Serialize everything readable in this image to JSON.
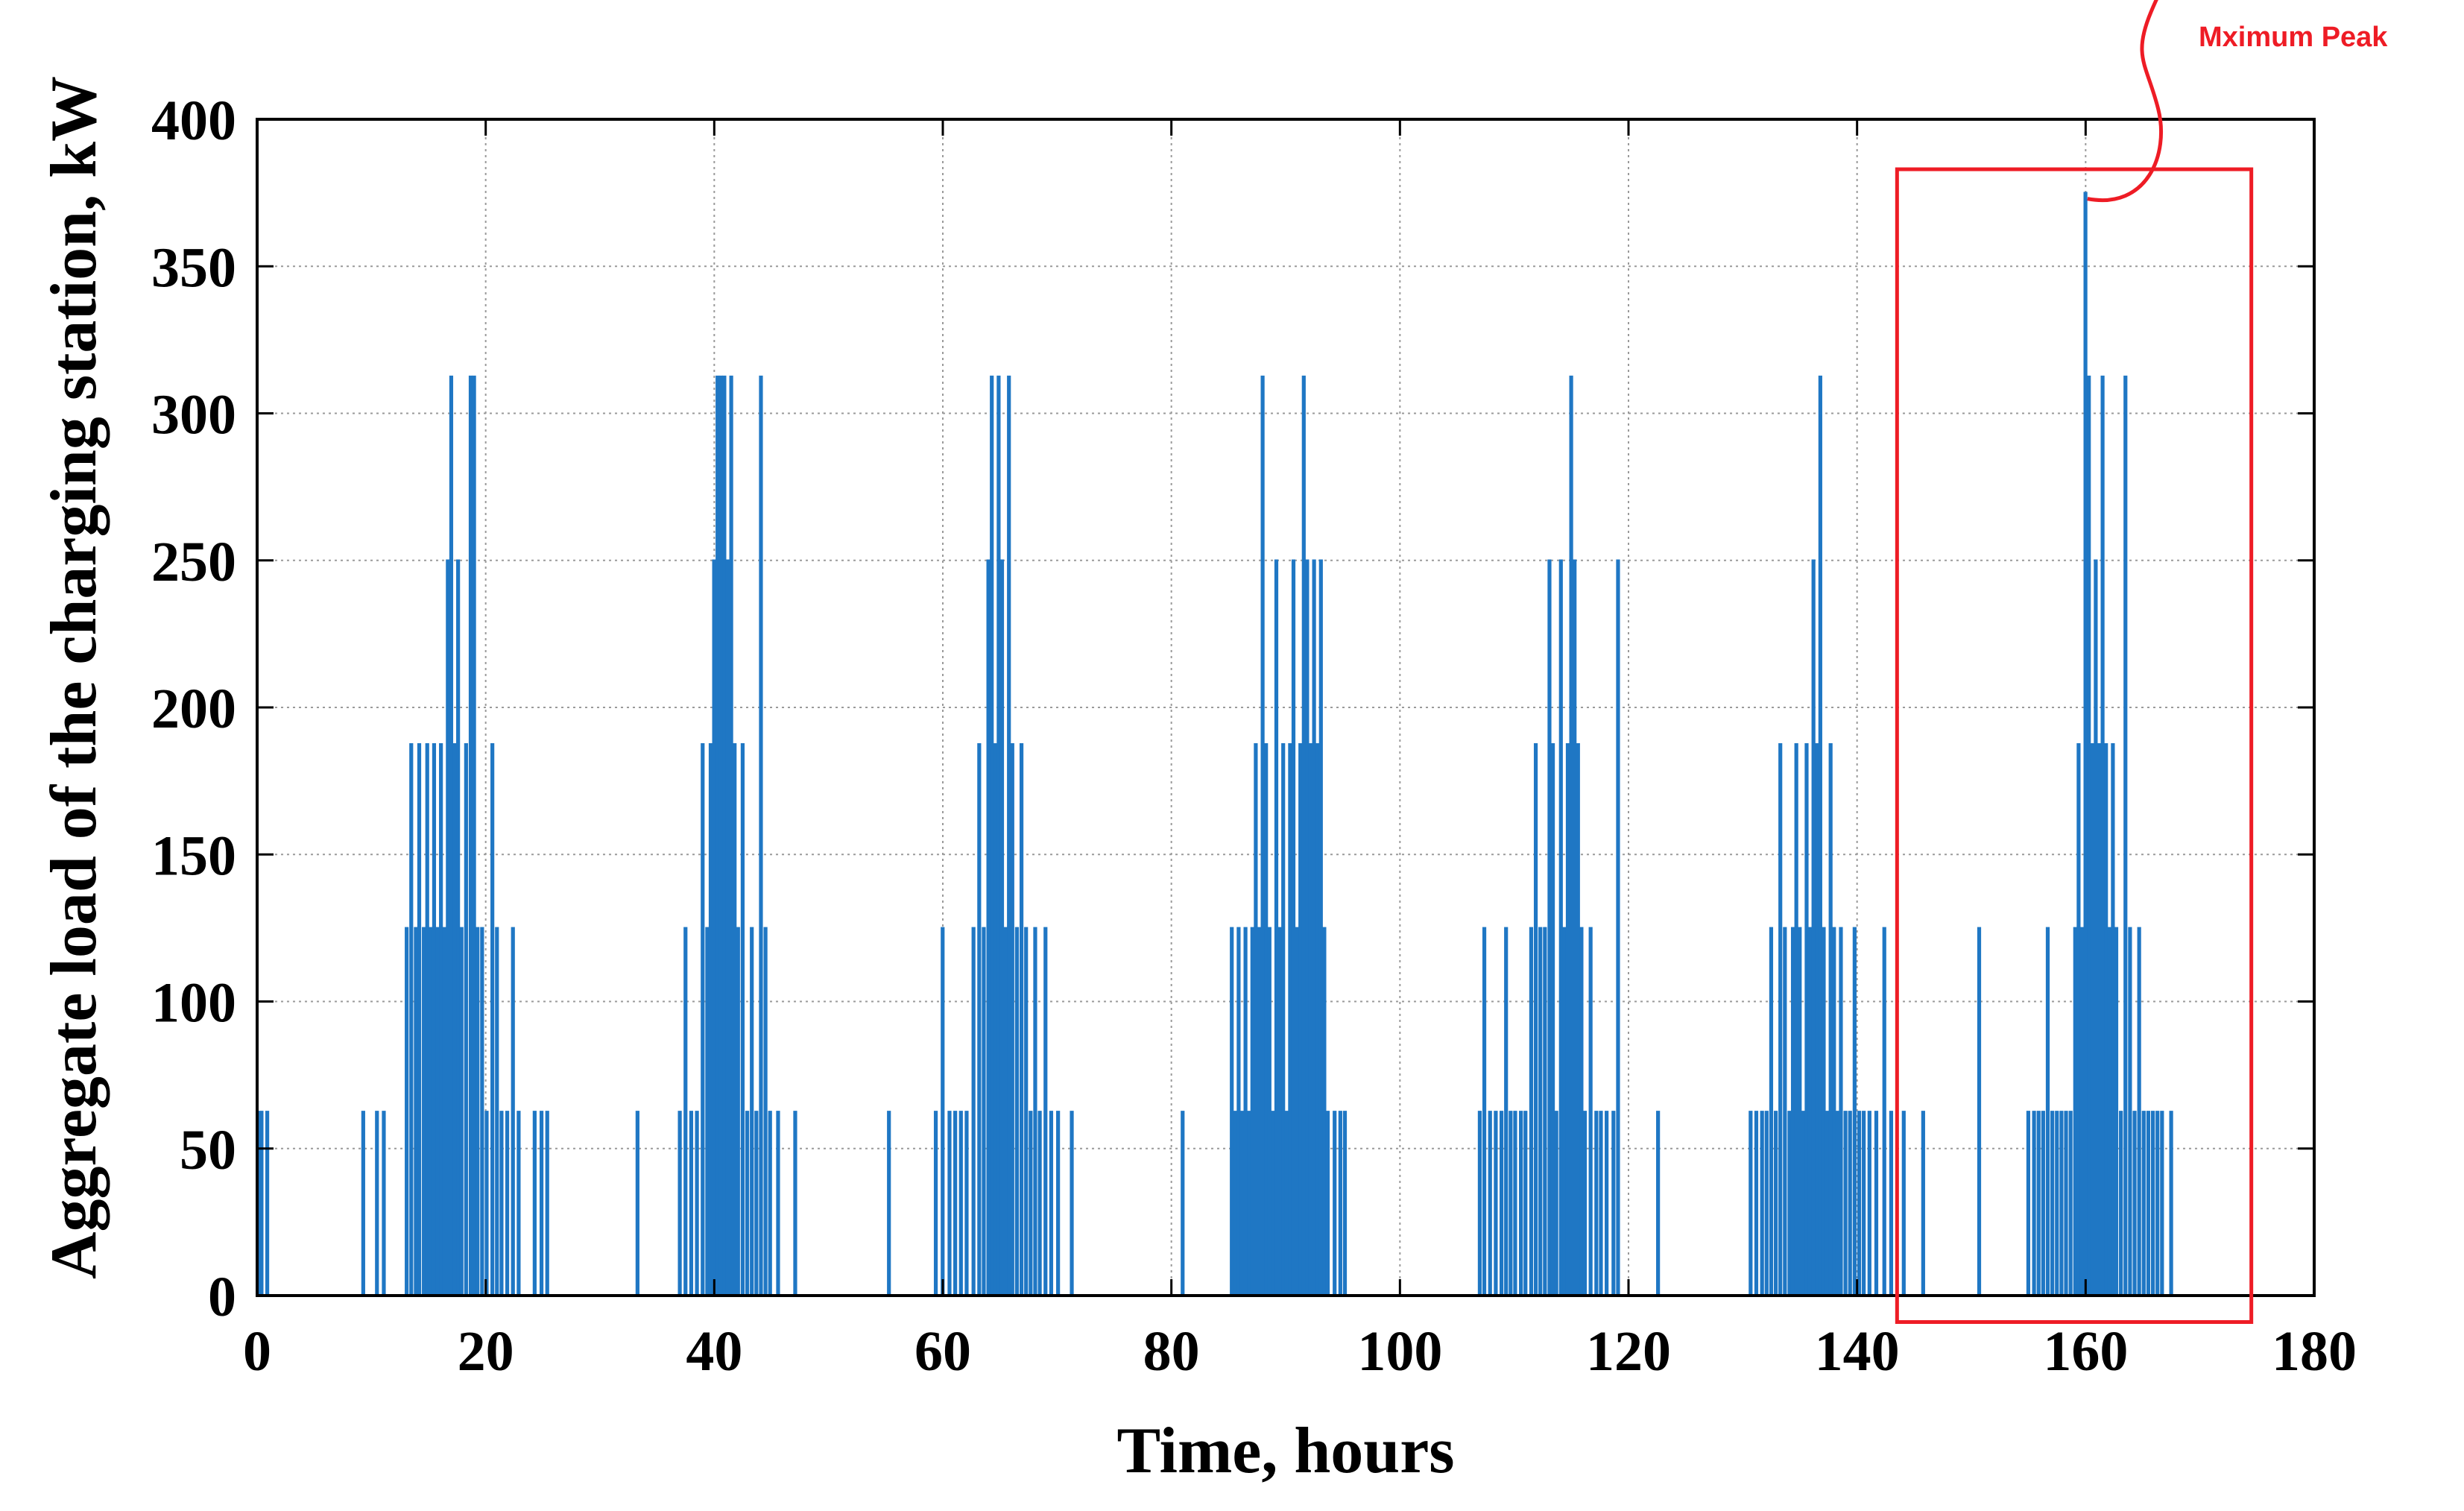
{
  "chart_data": {
    "type": "line",
    "title": "",
    "xlabel": "Time, hours",
    "ylabel": "Aggregate load of the charging station, kW",
    "xlim": [
      0,
      180
    ],
    "ylim": [
      0,
      400
    ],
    "xticks": [
      0,
      20,
      40,
      60,
      80,
      100,
      120,
      140,
      160,
      180
    ],
    "yticks": [
      0,
      50,
      100,
      150,
      200,
      250,
      300,
      350,
      400
    ],
    "xtick_labels": [
      "0",
      "20",
      "40",
      "60",
      "80",
      "100",
      "120",
      "140",
      "160",
      "180"
    ],
    "ytick_labels": [
      "0",
      "50",
      "100",
      "150",
      "200",
      "250",
      "300",
      "350",
      "400"
    ],
    "grid": true,
    "series": [
      {
        "name": "Aggregate load",
        "color": "#1f77c4",
        "pulses": [
          [
            0.0,
            62.5
          ],
          [
            0.3,
            62.5
          ],
          [
            0.8,
            62.5
          ],
          [
            9.2,
            62.5
          ],
          [
            10.4,
            62.5
          ],
          [
            11.0,
            62.5
          ],
          [
            13.0,
            125
          ],
          [
            13.4,
            187.5
          ],
          [
            13.8,
            125
          ],
          [
            14.1,
            187.5
          ],
          [
            14.5,
            125
          ],
          [
            14.8,
            187.5
          ],
          [
            15.1,
            125
          ],
          [
            15.4,
            187.5
          ],
          [
            15.7,
            125
          ],
          [
            16.0,
            187.5
          ],
          [
            16.3,
            125
          ],
          [
            16.6,
            250
          ],
          [
            16.9,
            312.5
          ],
          [
            17.2,
            187.5
          ],
          [
            17.5,
            250
          ],
          [
            17.8,
            125
          ],
          [
            18.2,
            187.5
          ],
          [
            18.6,
            312.5
          ],
          [
            18.9,
            312.5
          ],
          [
            19.2,
            125
          ],
          [
            19.6,
            125
          ],
          [
            20.0,
            62.5
          ],
          [
            20.5,
            187.5
          ],
          [
            20.9,
            125
          ],
          [
            21.3,
            62.5
          ],
          [
            21.8,
            62.5
          ],
          [
            22.3,
            125
          ],
          [
            22.8,
            62.5
          ],
          [
            24.2,
            62.5
          ],
          [
            24.8,
            62.5
          ],
          [
            25.3,
            62.5
          ],
          [
            33.2,
            62.5
          ],
          [
            36.9,
            62.5
          ],
          [
            37.4,
            125
          ],
          [
            37.9,
            62.5
          ],
          [
            38.4,
            62.5
          ],
          [
            38.9,
            187.5
          ],
          [
            39.3,
            125
          ],
          [
            39.6,
            187.5
          ],
          [
            39.9,
            250
          ],
          [
            40.2,
            312.5
          ],
          [
            40.5,
            312.5
          ],
          [
            40.8,
            312.5
          ],
          [
            41.1,
            250
          ],
          [
            41.4,
            312.5
          ],
          [
            41.7,
            187.5
          ],
          [
            42.0,
            125
          ],
          [
            42.4,
            187.5
          ],
          [
            42.8,
            62.5
          ],
          [
            43.2,
            125
          ],
          [
            43.6,
            62.5
          ],
          [
            44.0,
            312.5
          ],
          [
            44.4,
            125
          ],
          [
            44.8,
            62.5
          ],
          [
            45.5,
            62.5
          ],
          [
            47.0,
            62.5
          ],
          [
            55.2,
            62.5
          ],
          [
            59.3,
            62.5
          ],
          [
            59.9,
            125
          ],
          [
            60.5,
            62.5
          ],
          [
            61.0,
            62.5
          ],
          [
            61.5,
            62.5
          ],
          [
            62.0,
            62.5
          ],
          [
            62.6,
            125
          ],
          [
            63.1,
            187.5
          ],
          [
            63.5,
            125
          ],
          [
            63.9,
            250
          ],
          [
            64.2,
            312.5
          ],
          [
            64.5,
            187.5
          ],
          [
            64.8,
            312.5
          ],
          [
            65.1,
            250
          ],
          [
            65.4,
            125
          ],
          [
            65.7,
            312.5
          ],
          [
            66.0,
            187.5
          ],
          [
            66.4,
            125
          ],
          [
            66.8,
            187.5
          ],
          [
            67.2,
            125
          ],
          [
            67.6,
            62.5
          ],
          [
            68.0,
            125
          ],
          [
            68.4,
            62.5
          ],
          [
            68.9,
            125
          ],
          [
            69.4,
            62.5
          ],
          [
            70.0,
            62.5
          ],
          [
            71.2,
            62.5
          ],
          [
            80.9,
            62.5
          ],
          [
            85.2,
            125
          ],
          [
            85.5,
            62.5
          ],
          [
            85.8,
            125
          ],
          [
            86.1,
            62.5
          ],
          [
            86.4,
            125
          ],
          [
            86.7,
            62.5
          ],
          [
            87.0,
            125
          ],
          [
            87.3,
            187.5
          ],
          [
            87.6,
            125
          ],
          [
            87.9,
            312.5
          ],
          [
            88.2,
            187.5
          ],
          [
            88.5,
            125
          ],
          [
            88.8,
            62.5
          ],
          [
            89.1,
            250
          ],
          [
            89.4,
            125
          ],
          [
            89.7,
            187.5
          ],
          [
            90.0,
            62.5
          ],
          [
            90.3,
            187.5
          ],
          [
            90.6,
            250
          ],
          [
            90.9,
            125
          ],
          [
            91.2,
            187.5
          ],
          [
            91.5,
            312.5
          ],
          [
            91.8,
            250
          ],
          [
            92.1,
            187.5
          ],
          [
            92.4,
            250
          ],
          [
            92.7,
            187.5
          ],
          [
            93.0,
            250
          ],
          [
            93.3,
            125
          ],
          [
            93.6,
            62.5
          ],
          [
            94.2,
            62.5
          ],
          [
            94.7,
            62.5
          ],
          [
            95.1,
            62.5
          ],
          [
            106.9,
            62.5
          ],
          [
            107.3,
            125
          ],
          [
            107.8,
            62.5
          ],
          [
            108.3,
            62.5
          ],
          [
            108.8,
            62.5
          ],
          [
            109.2,
            125
          ],
          [
            109.6,
            62.5
          ],
          [
            110.0,
            62.5
          ],
          [
            110.5,
            62.5
          ],
          [
            110.9,
            62.5
          ],
          [
            111.4,
            125
          ],
          [
            111.8,
            187.5
          ],
          [
            112.2,
            125
          ],
          [
            112.6,
            125
          ],
          [
            113.0,
            250
          ],
          [
            113.3,
            187.5
          ],
          [
            113.6,
            62.5
          ],
          [
            114.0,
            250
          ],
          [
            114.3,
            125
          ],
          [
            114.6,
            187.5
          ],
          [
            114.9,
            312.5
          ],
          [
            115.2,
            250
          ],
          [
            115.5,
            187.5
          ],
          [
            115.8,
            125
          ],
          [
            116.1,
            62.5
          ],
          [
            116.6,
            125
          ],
          [
            117.1,
            62.5
          ],
          [
            117.5,
            62.5
          ],
          [
            118.0,
            62.5
          ],
          [
            118.6,
            62.5
          ],
          [
            119.0,
            250
          ],
          [
            122.5,
            62.5
          ],
          [
            130.6,
            62.5
          ],
          [
            131.1,
            62.5
          ],
          [
            131.6,
            62.5
          ],
          [
            132.0,
            62.5
          ],
          [
            132.4,
            125
          ],
          [
            132.8,
            62.5
          ],
          [
            133.2,
            187.5
          ],
          [
            133.6,
            125
          ],
          [
            134.0,
            62.5
          ],
          [
            134.3,
            125
          ],
          [
            134.6,
            187.5
          ],
          [
            134.9,
            125
          ],
          [
            135.2,
            62.5
          ],
          [
            135.5,
            187.5
          ],
          [
            135.8,
            125
          ],
          [
            136.1,
            250
          ],
          [
            136.4,
            187.5
          ],
          [
            136.7,
            312.5
          ],
          [
            137.0,
            125
          ],
          [
            137.3,
            62.5
          ],
          [
            137.6,
            187.5
          ],
          [
            137.9,
            125
          ],
          [
            138.2,
            62.5
          ],
          [
            138.5,
            125
          ],
          [
            138.9,
            62.5
          ],
          [
            139.3,
            62.5
          ],
          [
            139.7,
            125
          ],
          [
            140.1,
            62.5
          ],
          [
            140.5,
            62.5
          ],
          [
            141.0,
            62.5
          ],
          [
            141.6,
            62.5
          ],
          [
            142.3,
            125
          ],
          [
            142.9,
            62.5
          ],
          [
            144.0,
            62.5
          ],
          [
            145.7,
            62.5
          ],
          [
            150.6,
            125
          ],
          [
            154.9,
            62.5
          ],
          [
            155.4,
            62.5
          ],
          [
            155.8,
            62.5
          ],
          [
            156.2,
            62.5
          ],
          [
            156.6,
            125
          ],
          [
            157.0,
            62.5
          ],
          [
            157.4,
            62.5
          ],
          [
            157.8,
            62.5
          ],
          [
            158.2,
            62.5
          ],
          [
            158.6,
            62.5
          ],
          [
            159.0,
            125
          ],
          [
            159.3,
            187.5
          ],
          [
            159.6,
            125
          ],
          [
            159.9,
            375
          ],
          [
            160.2,
            312.5
          ],
          [
            160.5,
            187.5
          ],
          [
            160.8,
            250
          ],
          [
            161.1,
            187.5
          ],
          [
            161.4,
            312.5
          ],
          [
            161.7,
            187.5
          ],
          [
            162.0,
            125
          ],
          [
            162.3,
            187.5
          ],
          [
            162.6,
            125
          ],
          [
            163.0,
            62.5
          ],
          [
            163.4,
            312.5
          ],
          [
            163.8,
            125
          ],
          [
            164.2,
            62.5
          ],
          [
            164.6,
            125
          ],
          [
            165.0,
            62.5
          ],
          [
            165.4,
            62.5
          ],
          [
            165.8,
            62.5
          ],
          [
            166.2,
            62.5
          ],
          [
            166.6,
            62.5
          ],
          [
            167.4,
            62.5
          ]
        ]
      }
    ],
    "annotations": [
      {
        "text": "Mximum Peak",
        "color": "#ee1c25",
        "points_to": [
          159.9,
          375
        ],
        "highlight_box": {
          "x_range": [
            143.5,
            174.5
          ],
          "y_range": [
            -9,
            383
          ]
        }
      }
    ]
  }
}
